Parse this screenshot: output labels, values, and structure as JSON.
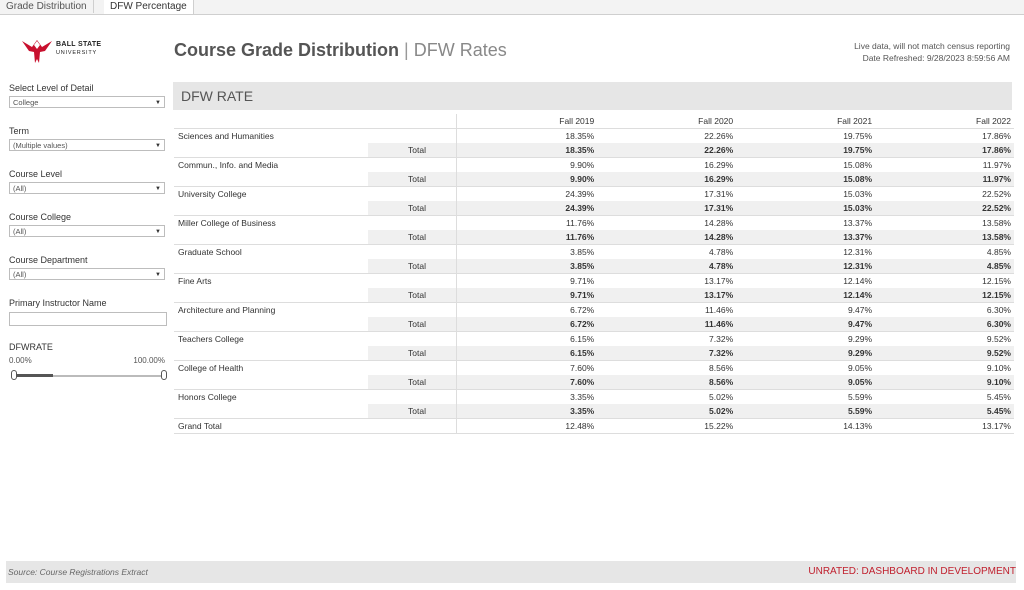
{
  "tabs": [
    "Grade Distribution",
    "DFW Percentage"
  ],
  "logo": {
    "line1": "BALL STATE",
    "line2": "UNIVERSITY",
    "icon": "cardinal-logo-icon",
    "color": "#c8102e"
  },
  "header": {
    "title_main": "Course Grade Distribution",
    "title_sep": "|",
    "title_sub": "DFW Rates",
    "live_note": "Live data, will not match census reporting",
    "refreshed": "Date Refreshed: 9/28/2023 8:59:56 AM"
  },
  "filters": {
    "level_label": "Select Level of Detail",
    "level_value": "College",
    "term_label": "Term",
    "term_value": "(Multiple values)",
    "course_level_label": "Course Level",
    "course_level_value": "(All)",
    "course_college_label": "Course College",
    "course_college_value": "(All)",
    "course_dept_label": "Course Department",
    "course_dept_value": "(All)",
    "instructor_label": "Primary Instructor Name",
    "dfw_label": "DFWRATE",
    "dfw_min": "0.00%",
    "dfw_max": "100.00%"
  },
  "panel_title": "DFW RATE",
  "columns": [
    "Fall 2019",
    "Fall 2020",
    "Fall 2021",
    "Fall 2022"
  ],
  "total_label": "Total",
  "rows": [
    {
      "name": "Sciences and Humanities",
      "values": [
        "18.35%",
        "22.26%",
        "19.75%",
        "17.86%"
      ],
      "totals": [
        "18.35%",
        "22.26%",
        "19.75%",
        "17.86%"
      ]
    },
    {
      "name": "Commun., Info. and Media",
      "values": [
        "9.90%",
        "16.29%",
        "15.08%",
        "11.97%"
      ],
      "totals": [
        "9.90%",
        "16.29%",
        "15.08%",
        "11.97%"
      ]
    },
    {
      "name": "University College",
      "values": [
        "24.39%",
        "17.31%",
        "15.03%",
        "22.52%"
      ],
      "totals": [
        "24.39%",
        "17.31%",
        "15.03%",
        "22.52%"
      ]
    },
    {
      "name": "Miller College of Business",
      "values": [
        "11.76%",
        "14.28%",
        "13.37%",
        "13.58%"
      ],
      "totals": [
        "11.76%",
        "14.28%",
        "13.37%",
        "13.58%"
      ]
    },
    {
      "name": "Graduate School",
      "values": [
        "3.85%",
        "4.78%",
        "12.31%",
        "4.85%"
      ],
      "totals": [
        "3.85%",
        "4.78%",
        "12.31%",
        "4.85%"
      ]
    },
    {
      "name": "Fine Arts",
      "values": [
        "9.71%",
        "13.17%",
        "12.14%",
        "12.15%"
      ],
      "totals": [
        "9.71%",
        "13.17%",
        "12.14%",
        "12.15%"
      ]
    },
    {
      "name": "Architecture and Planning",
      "values": [
        "6.72%",
        "11.46%",
        "9.47%",
        "6.30%"
      ],
      "totals": [
        "6.72%",
        "11.46%",
        "9.47%",
        "6.30%"
      ]
    },
    {
      "name": "Teachers College",
      "values": [
        "6.15%",
        "7.32%",
        "9.29%",
        "9.52%"
      ],
      "totals": [
        "6.15%",
        "7.32%",
        "9.29%",
        "9.52%"
      ]
    },
    {
      "name": "College of Health",
      "values": [
        "7.60%",
        "8.56%",
        "9.05%",
        "9.10%"
      ],
      "totals": [
        "7.60%",
        "8.56%",
        "9.05%",
        "9.10%"
      ]
    },
    {
      "name": "Honors College",
      "values": [
        "3.35%",
        "5.02%",
        "5.59%",
        "5.45%"
      ],
      "totals": [
        "3.35%",
        "5.02%",
        "5.59%",
        "5.45%"
      ]
    }
  ],
  "grand_total": {
    "label": "Grand Total",
    "values": [
      "12.48%",
      "15.22%",
      "14.13%",
      "13.17%"
    ]
  },
  "footer": {
    "source": "Source: Course Registrations Extract",
    "status": "UNRATED: DASHBOARD IN DEVELOPMENT",
    "status_color": "#c0202e"
  }
}
